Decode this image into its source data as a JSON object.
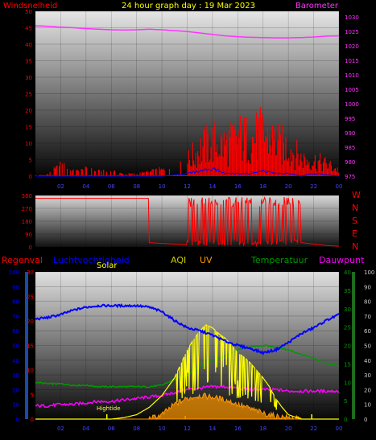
{
  "colors": {
    "wind": "#ff0000",
    "gust_blue": "#0000ff",
    "barometer": "#ff33ff",
    "title": "#ffff00",
    "direction": "#ff0000",
    "rain": "#ff0000",
    "humidity": "#0000ff",
    "aqi": "#cccc00",
    "uv": "#ff9900",
    "temperature": "#009900",
    "dewpoint": "#ff00ff",
    "solar": "#ffff00",
    "lightning": "#ff9900"
  },
  "chart_data": [
    {
      "type": "bar",
      "title": "24 hour graph day : 19 Mar 2023",
      "left_label": "Windsnelheid",
      "right_label": "Barometer",
      "left_ticks": [
        "0",
        "5",
        "10",
        "15",
        "20",
        "25",
        "30",
        "35",
        "40",
        "45",
        "50"
      ],
      "right_ticks": [
        "975",
        "980",
        "985",
        "990",
        "995",
        "1000",
        "1005",
        "1010",
        "1015",
        "1020",
        "1025",
        "1030"
      ],
      "x_ticks": [
        "02",
        "04",
        "06",
        "08",
        "10",
        "12",
        "14",
        "16",
        "18",
        "20",
        "22",
        "00"
      ],
      "xlim_hours": [
        0,
        24
      ],
      "ylim_left": [
        0,
        50
      ],
      "ylim_right": [
        975,
        1032
      ],
      "series": [
        {
          "name": "Barometer",
          "axis": "right",
          "x": [
            0,
            1,
            2,
            3,
            4,
            5,
            6,
            7,
            8,
            9,
            10,
            11,
            12,
            13,
            14,
            15,
            16,
            17,
            18,
            19,
            20,
            21,
            22,
            23,
            24
          ],
          "y": [
            1027,
            1026.8,
            1026.5,
            1026.3,
            1026,
            1025.8,
            1025.6,
            1025.5,
            1025.6,
            1025.8,
            1025.6,
            1025.3,
            1025,
            1024.5,
            1024,
            1023.5,
            1023.2,
            1023,
            1022.9,
            1022.8,
            1022.8,
            1022.9,
            1023.1,
            1023.4,
            1023.5
          ]
        },
        {
          "name": "Windsnelheid",
          "axis": "left",
          "x": [
            0,
            1,
            2,
            3,
            4,
            5,
            6,
            7,
            8,
            9,
            10,
            11,
            12,
            13,
            14,
            15,
            16,
            17,
            18,
            19,
            20,
            21,
            22,
            23,
            24
          ],
          "y": [
            0,
            1,
            5,
            2,
            3,
            2,
            2,
            1,
            1,
            2,
            3,
            2,
            8,
            14,
            18,
            16,
            20,
            19,
            22,
            17,
            15,
            9,
            8,
            6,
            3
          ]
        },
        {
          "name": "",
          "axis": "left",
          "x": [
            0,
            2,
            4,
            6,
            8,
            10,
            12,
            13,
            14,
            15,
            16,
            17,
            18,
            19,
            20,
            21,
            22,
            24
          ],
          "y": [
            0,
            0,
            0,
            0,
            0,
            0,
            1,
            2,
            3,
            1,
            1,
            1,
            2,
            1,
            1,
            0,
            1,
            0
          ]
        }
      ]
    },
    {
      "type": "line",
      "ylim": [
        0,
        360
      ],
      "left_ticks": [
        "0",
        "90",
        "180",
        "270",
        "360"
      ],
      "right_labels": [
        "W",
        "N",
        "S",
        "E",
        "N"
      ],
      "x_ticks": [
        "02",
        "04",
        "06",
        "08",
        "10",
        "12",
        "14",
        "16",
        "18",
        "20",
        "22",
        "00"
      ],
      "xlim_hours": [
        0,
        24
      ],
      "series": [
        {
          "name": "",
          "x": [
            0,
            4,
            8,
            9,
            10,
            11,
            12,
            13,
            14,
            15,
            16,
            17,
            18,
            19,
            20,
            21,
            22,
            23,
            24
          ],
          "y": [
            340,
            340,
            340,
            40,
            30,
            20,
            200,
            310,
            100,
            300,
            120,
            320,
            150,
            300,
            200,
            30,
            20,
            10,
            5
          ]
        }
      ]
    },
    {
      "type": "line",
      "header_labels": [
        "Regenval",
        "Luchtvochtigheid",
        "Solar",
        "AQI",
        "UV",
        "Temperatuur",
        "Dauwpunt"
      ],
      "left_ticks": [
        "0",
        "10",
        "20",
        "30",
        "40",
        "50",
        "60",
        "70",
        "80",
        "90",
        "100"
      ],
      "humidity_ticks": [
        "0",
        "5",
        "10",
        "15",
        "20",
        "25",
        "30"
      ],
      "temp_ticks": [
        "0",
        "5",
        "10",
        "15",
        "20",
        "25",
        "30",
        "35",
        "40"
      ],
      "right_ticks": [
        "0",
        "10",
        "20",
        "30",
        "40",
        "50",
        "60",
        "70",
        "80",
        "90",
        "100"
      ],
      "x_ticks": [
        "02",
        "04",
        "06",
        "08",
        "10",
        "12",
        "14",
        "16",
        "18",
        "20",
        "22",
        "00"
      ],
      "xlim_hours": [
        0,
        24
      ],
      "annotation": "Hightide",
      "series": [
        {
          "name": "Luchtvochtigheid",
          "x": [
            0,
            1,
            2,
            3,
            4,
            5,
            6,
            7,
            8,
            9,
            10,
            11,
            12,
            13,
            14,
            15,
            16,
            17,
            18,
            19,
            20,
            21,
            22,
            23,
            24
          ],
          "y": [
            68,
            69,
            71,
            74,
            76,
            77,
            77,
            77,
            77,
            76,
            73,
            67,
            62,
            60,
            57,
            53,
            50,
            48,
            45,
            47,
            52,
            58,
            62,
            67,
            71
          ]
        },
        {
          "name": "Temperatuur",
          "x": [
            0,
            1,
            2,
            3,
            4,
            5,
            6,
            7,
            8,
            9,
            10,
            11,
            12,
            13,
            14,
            15,
            16,
            17,
            18,
            19,
            20,
            21,
            22,
            23,
            24
          ],
          "y": [
            25,
            24,
            24,
            23,
            23,
            22,
            22,
            22,
            22,
            22,
            23,
            27,
            30,
            36,
            40,
            43,
            47,
            49,
            50,
            49,
            47,
            44,
            41,
            38,
            36
          ]
        },
        {
          "name": "Dauwpunt",
          "x": [
            0,
            1,
            2,
            3,
            4,
            5,
            6,
            7,
            8,
            9,
            10,
            11,
            12,
            13,
            14,
            15,
            16,
            17,
            18,
            19,
            20,
            21,
            22,
            23,
            24
          ],
          "y": [
            9,
            9,
            10,
            10,
            11,
            12,
            12,
            13,
            14,
            15,
            16,
            18,
            20,
            21,
            22,
            22,
            21,
            20,
            20,
            20,
            19,
            19,
            19,
            19,
            19
          ]
        },
        {
          "name": "Solar",
          "x": [
            0,
            6,
            7,
            8,
            9,
            10,
            11,
            12,
            12.5,
            13,
            13.5,
            14,
            14.5,
            15,
            15.5,
            16,
            16.5,
            17,
            17.5,
            18,
            18.5,
            19,
            19.5,
            20,
            21,
            24
          ],
          "y": [
            0,
            0,
            1,
            3,
            8,
            16,
            28,
            47,
            54,
            60,
            64,
            62,
            58,
            55,
            50,
            45,
            42,
            38,
            33,
            28,
            22,
            14,
            8,
            3,
            0,
            0
          ]
        },
        {
          "name": "UV",
          "x": [
            0,
            9,
            10,
            11,
            12,
            13,
            14,
            15,
            16,
            17,
            18,
            19,
            20,
            21,
            24
          ],
          "y": [
            0,
            0,
            3,
            10,
            14,
            16,
            15,
            13,
            10,
            7,
            4,
            2,
            1,
            0,
            0
          ]
        }
      ]
    }
  ]
}
